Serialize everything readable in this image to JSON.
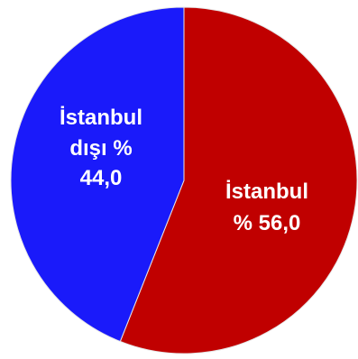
{
  "chart_data": {
    "type": "pie",
    "slices": [
      {
        "value": 56.0,
        "color": "#C00000",
        "label_lines": [
          "İstanbul",
          "% 56,0"
        ]
      },
      {
        "value": 44.0,
        "color": "#1A1AFA",
        "label_lines": [
          "İstanbul",
          "dışı %",
          "44,0"
        ]
      }
    ],
    "label_color": "#FFFFFF"
  }
}
